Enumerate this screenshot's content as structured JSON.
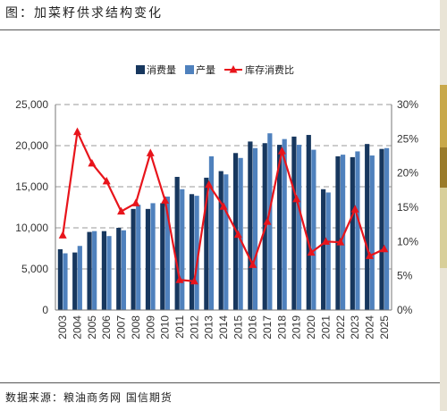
{
  "title": "图：加菜籽供求结构变化",
  "source": "数据来源：粮油商务网  国信期货",
  "chart_data": {
    "type": "bar",
    "categories": [
      "2003",
      "2004",
      "2005",
      "2006",
      "2007",
      "2008",
      "2009",
      "2010",
      "2011",
      "2012",
      "2013",
      "2014",
      "2015",
      "2016",
      "2017",
      "2018",
      "2019",
      "2020",
      "2021",
      "2022",
      "2023",
      "2024",
      "2025"
    ],
    "series": [
      {
        "name": "消费量",
        "type": "bar",
        "axis": "left",
        "color": "#17375e",
        "values": [
          7400,
          7000,
          9500,
          9600,
          10000,
          12300,
          12300,
          13000,
          16200,
          14100,
          16100,
          16900,
          19100,
          20500,
          20300,
          20100,
          21100,
          21300,
          14700,
          18700,
          18600,
          20200,
          19600
        ]
      },
      {
        "name": "产量",
        "type": "bar",
        "axis": "left",
        "color": "#4f81bd",
        "values": [
          6900,
          7800,
          9600,
          9000,
          9700,
          12800,
          13000,
          13800,
          14700,
          13900,
          18700,
          16500,
          18500,
          19700,
          21500,
          20800,
          20100,
          19500,
          14300,
          18900,
          19300,
          18800,
          19700
        ]
      },
      {
        "name": "库存消费比",
        "type": "line",
        "axis": "right",
        "color": "#e8141b",
        "values": [
          10.9,
          26.0,
          21.4,
          18.8,
          14.4,
          15.6,
          22.9,
          16.0,
          4.4,
          4.2,
          18.3,
          15.1,
          11.0,
          6.6,
          12.9,
          23.2,
          16.2,
          8.4,
          10.0,
          9.9,
          14.7,
          7.9,
          8.9
        ]
      }
    ],
    "left_axis": {
      "min": 0,
      "max": 25000,
      "ticks": [
        "0",
        "5,000",
        "10,000",
        "15,000",
        "20,000",
        "25,000"
      ]
    },
    "right_axis": {
      "min": 0,
      "max": 30,
      "ticks": [
        "0%",
        "5%",
        "10%",
        "15%",
        "20%",
        "25%",
        "30%"
      ]
    },
    "legend": {
      "placement": "top",
      "items": [
        "消费量",
        "产量",
        "库存消费比"
      ]
    },
    "grid": "dashed horizontal"
  }
}
